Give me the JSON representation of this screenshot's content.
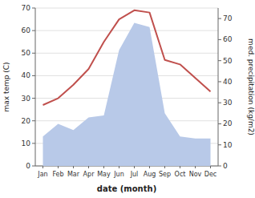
{
  "chart_data": {
    "type": "line",
    "xlabel": "date (month)",
    "ylabel": "max temp (C)",
    "y2label": "med. precipitation (kg/m2)",
    "categories": [
      "Jan",
      "Feb",
      "Mar",
      "Apr",
      "May",
      "Jun",
      "Jul",
      "Aug",
      "Sep",
      "Oct",
      "Nov",
      "Dec"
    ],
    "series": [
      {
        "type": "area",
        "axis": "y2",
        "color": "#b8c9e8",
        "values": [
          14,
          20,
          17,
          23,
          24,
          55,
          68,
          66,
          25,
          14,
          13,
          13
        ]
      },
      {
        "type": "line",
        "color": "#c0504d",
        "values": [
          27,
          30,
          36,
          43,
          55,
          65,
          69,
          68,
          47,
          45,
          39,
          33
        ]
      }
    ],
    "ylim": [
      0,
      70
    ],
    "yticks": [
      0,
      10,
      20,
      30,
      40,
      50,
      60,
      70
    ],
    "y2lim": [
      0,
      75
    ],
    "y2ticks": [
      0,
      10,
      20,
      30,
      40,
      50,
      60,
      70
    ],
    "grid": true
  }
}
